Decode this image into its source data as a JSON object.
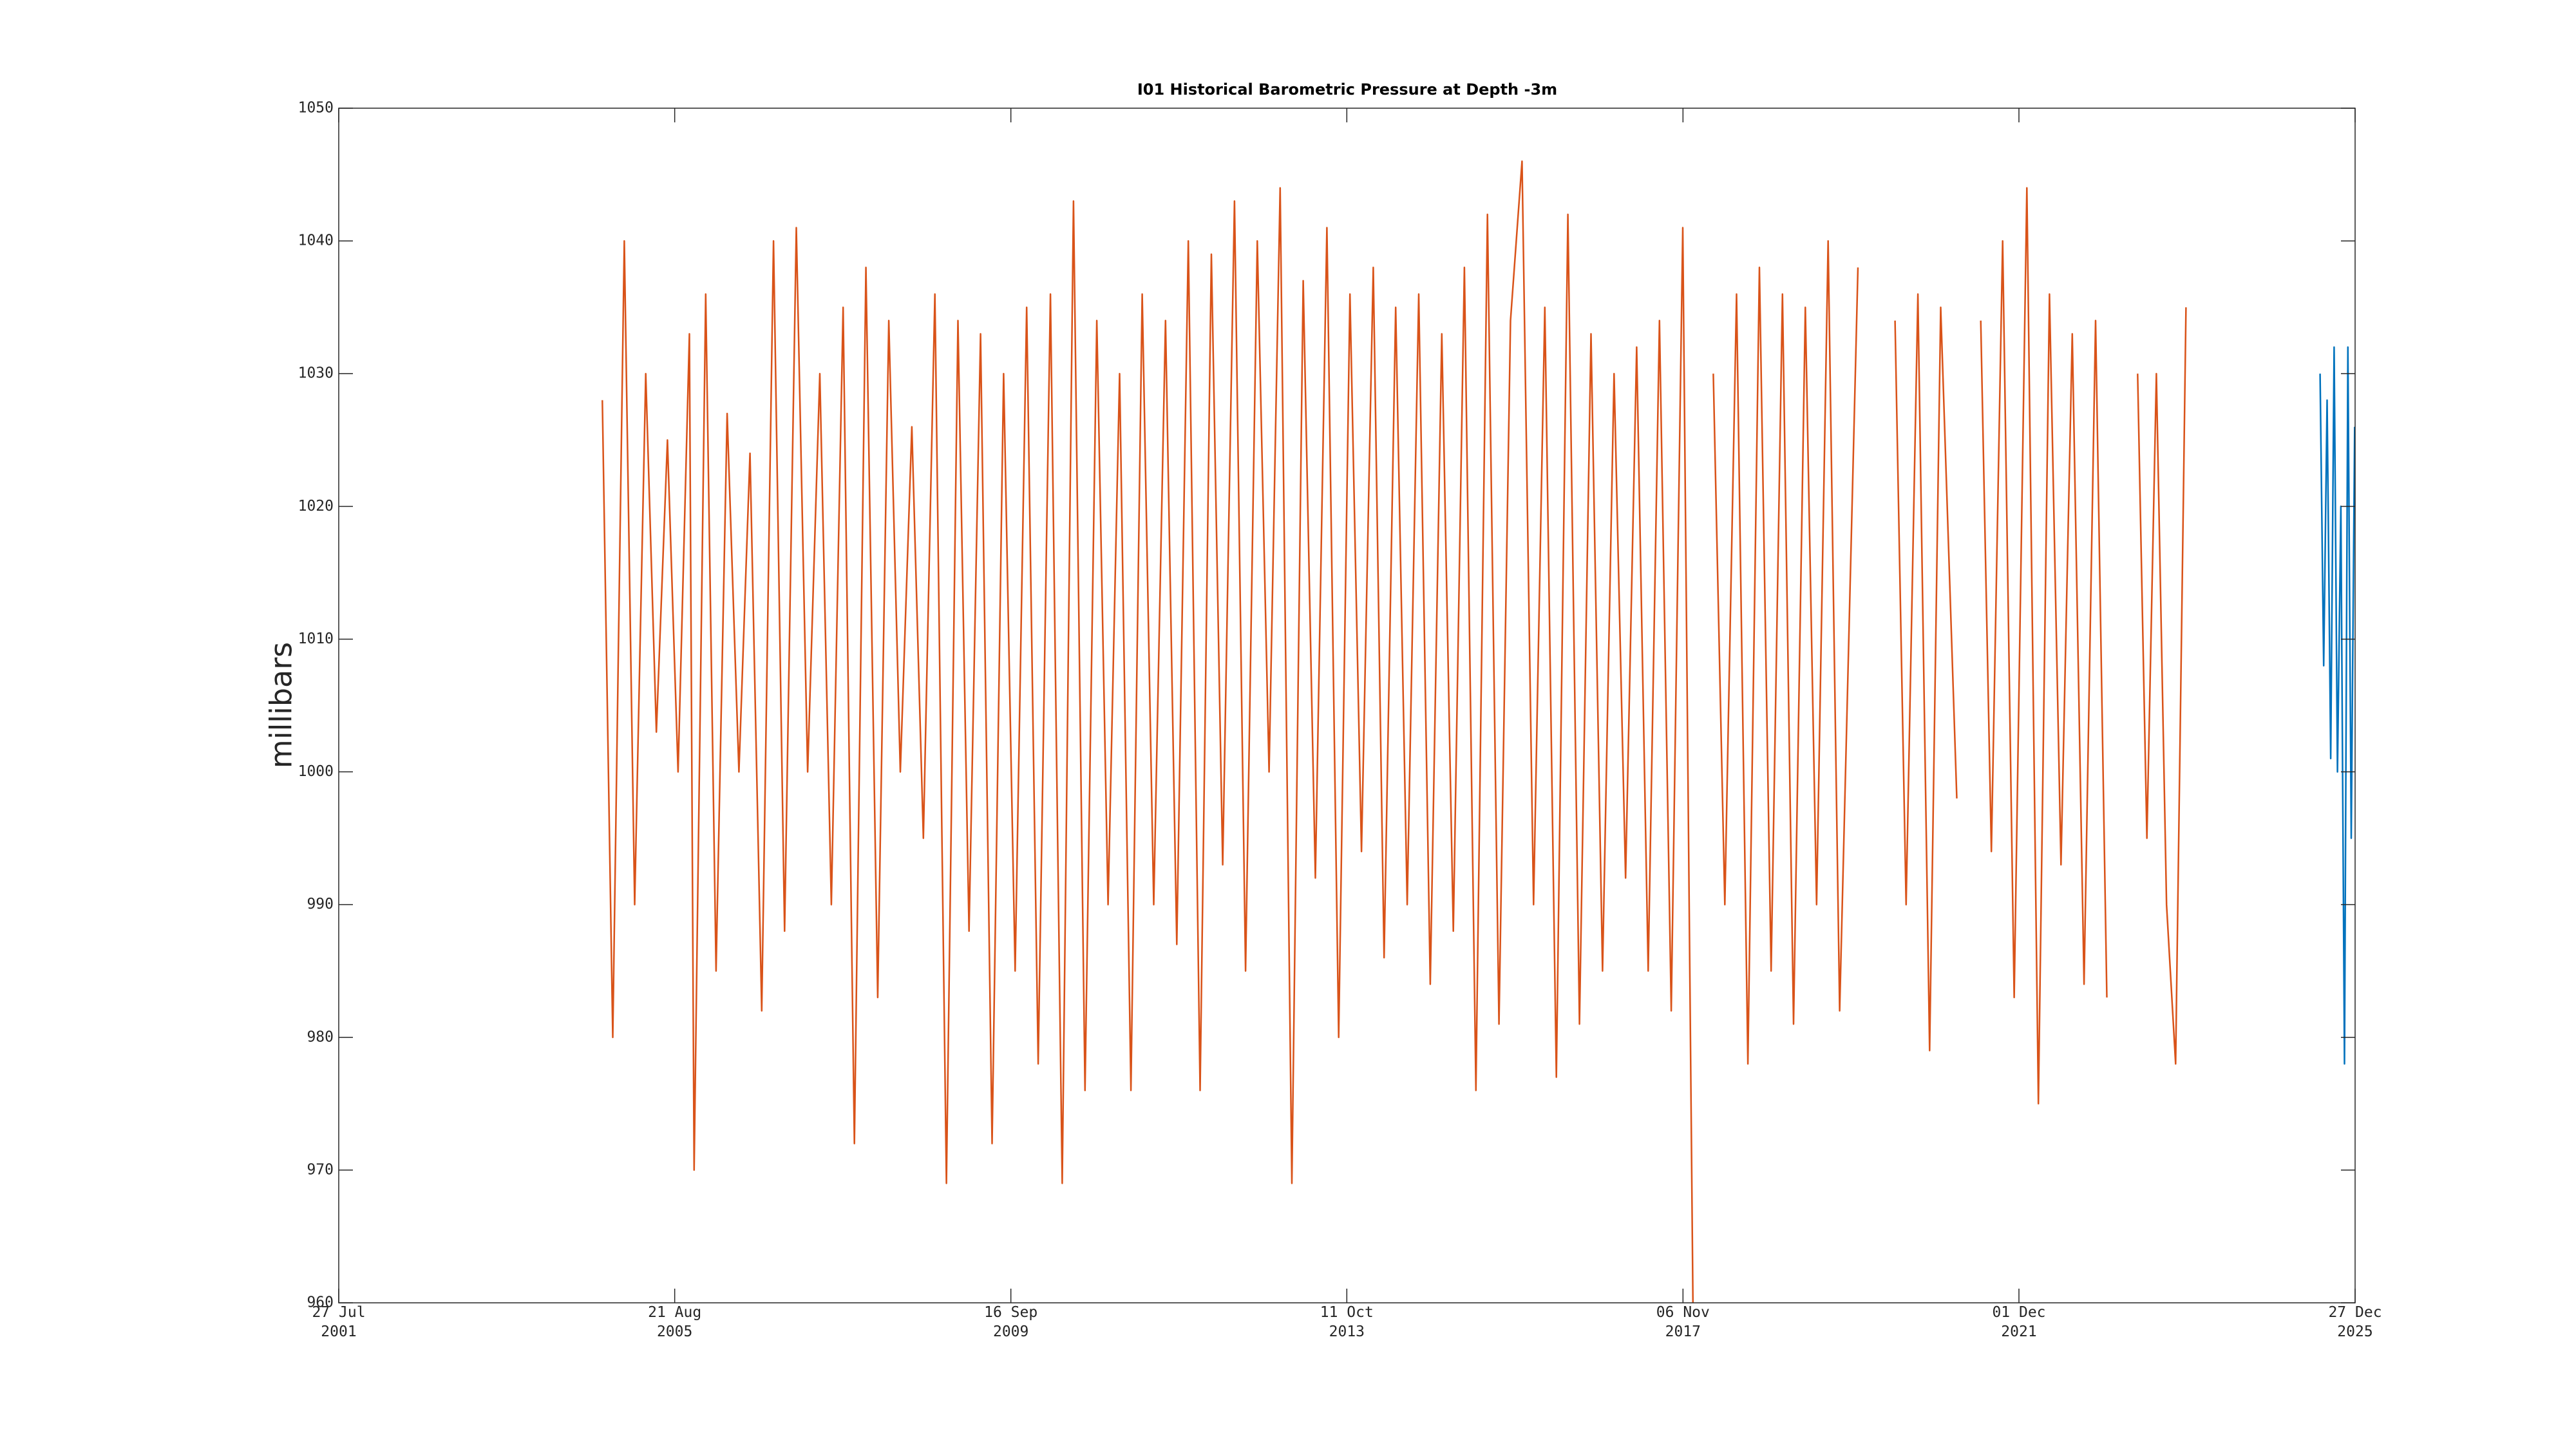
{
  "chart_data": {
    "type": "line",
    "title": "I01 Historical Barometric Pressure at Depth -3m",
    "ylabel": "millibars",
    "xlim": [
      "2001-07-27",
      "2025-12-27"
    ],
    "xticks": [
      {
        "value": "2001-07-27",
        "label": "27 Jul 2001"
      },
      {
        "value": "2005-08-21",
        "label": "21 Aug 2005"
      },
      {
        "value": "2009-09-16",
        "label": "16 Sep 2009"
      },
      {
        "value": "2013-10-11",
        "label": "11 Oct 2013"
      },
      {
        "value": "2017-11-06",
        "label": "06 Nov 2017"
      },
      {
        "value": "2021-12-01",
        "label": "01 Dec 2021"
      },
      {
        "value": "2025-12-27",
        "label": "27 Dec 2025"
      }
    ],
    "ylim": [
      960,
      1050
    ],
    "yticks": [
      960,
      970,
      980,
      990,
      1000,
      1010,
      1020,
      1030,
      1040,
      1050
    ],
    "grid": false,
    "series": [
      {
        "color": "#d95319",
        "x": [
          "2004-10-05",
          "2004-11-20",
          "2005-01-10",
          "2005-02-25",
          "2005-04-15",
          "2005-06-01",
          "2005-07-20",
          "2005-09-05",
          "2005-10-25",
          "2005-11-15",
          "2006-01-05",
          "2006-02-20",
          "2006-04-10",
          "2006-06-01",
          "2006-07-20",
          "2006-09-10",
          "2006-11-01",
          "2006-12-20",
          "2007-02-10",
          "2007-04-01",
          "2007-05-25",
          "2007-07-15",
          "2007-09-05",
          "2007-10-25",
          "2007-12-15",
          "2008-02-05",
          "2008-03-25",
          "2008-05-15",
          "2008-07-05",
          "2008-08-25",
          "2008-10-15",
          "2008-12-05",
          "2009-01-25",
          "2009-03-15",
          "2009-05-05",
          "2009-06-25",
          "2009-08-15",
          "2009-10-05",
          "2009-11-25",
          "2010-01-15",
          "2010-03-10",
          "2010-05-01",
          "2010-06-20",
          "2010-08-10",
          "2010-10-01",
          "2010-11-20",
          "2011-01-10",
          "2011-03-01",
          "2011-04-20",
          "2011-06-10",
          "2011-08-01",
          "2011-09-20",
          "2011-11-10",
          "2012-01-01",
          "2012-02-20",
          "2012-04-10",
          "2012-06-01",
          "2012-07-20",
          "2012-09-10",
          "2012-11-01",
          "2012-12-20",
          "2013-02-10",
          "2013-04-01",
          "2013-05-25",
          "2013-07-15",
          "2013-09-05",
          "2013-10-25",
          "2013-12-15",
          "2014-02-05",
          "2014-03-25",
          "2014-05-15",
          "2014-07-05",
          "2014-08-25",
          "2014-10-15",
          "2014-12-05",
          "2015-01-25",
          "2015-03-15",
          "2015-05-05",
          "2015-06-25",
          "2015-08-15",
          "2015-10-05",
          "2015-11-25",
          "2016-01-15",
          "2016-03-05",
          "2016-04-25",
          "2016-06-15",
          "2016-08-05",
          "2016-09-25",
          "2016-11-15",
          "2017-01-05",
          "2017-02-25",
          "2017-04-15",
          "2017-06-05",
          "2017-07-25",
          "2017-09-15",
          "2017-11-05",
          "2017-12-20",
          "2018-02-01",
          "2018-03-20",
          "2018-05-10",
          "2018-07-01",
          "2018-08-20",
          "2018-10-10",
          "2018-12-01",
          "2019-01-20",
          "2019-03-10",
          "2019-05-01",
          "2019-06-20",
          "2019-08-10",
          "2019-09-30",
          "2019-12-20",
          "2020-02-15",
          "2020-06-01",
          "2020-07-20",
          "2020-09-10",
          "2020-11-01",
          "2020-12-20",
          "2021-03-01",
          "2021-04-20",
          "2021-06-15",
          "2021-08-01",
          "2021-09-20",
          "2021-11-10",
          "2022-01-05",
          "2022-02-25",
          "2022-04-15",
          "2022-06-05",
          "2022-07-25",
          "2022-09-15",
          "2022-11-05",
          "2022-12-25",
          "2023-02-15",
          "2023-05-10",
          "2023-06-20",
          "2023-08-01",
          "2023-09-15",
          "2023-10-25",
          "2023-12-10"
        ],
        "values": [
          1028,
          980,
          1040,
          990,
          1030,
          1003,
          1025,
          1000,
          1033,
          970,
          1036,
          985,
          1027,
          1000,
          1024,
          982,
          1040,
          988,
          1041,
          1000,
          1030,
          990,
          1035,
          972,
          1038,
          983,
          1034,
          1000,
          1026,
          995,
          1036,
          969,
          1034,
          988,
          1033,
          972,
          1030,
          985,
          1035,
          978,
          1036,
          969,
          1043,
          976,
          1034,
          990,
          1030,
          976,
          1036,
          990,
          1034,
          987,
          1040,
          976,
          1039,
          993,
          1043,
          985,
          1040,
          1000,
          1044,
          969,
          1037,
          992,
          1041,
          980,
          1036,
          994,
          1038,
          986,
          1035,
          990,
          1036,
          984,
          1033,
          988,
          1038,
          976,
          1042,
          981,
          1034,
          1046,
          990,
          1035,
          977,
          1042,
          981,
          1033,
          985,
          1030,
          992,
          1032,
          985,
          1034,
          982,
          1041,
          960,
          null,
          1030,
          990,
          1036,
          978,
          1038,
          985,
          1036,
          981,
          1035,
          990,
          1040,
          982,
          1038,
          null,
          1034,
          990,
          1036,
          979,
          1035,
          998,
          null,
          1034,
          994,
          1040,
          983,
          1044,
          975,
          1036,
          993,
          1033,
          984,
          1034,
          983,
          null,
          1030,
          995,
          1030,
          990,
          978,
          1035
        ]
      },
      {
        "color": "#0072bd",
        "x": [
          "2025-07-25",
          "2025-08-10",
          "2025-08-25",
          "2025-09-10",
          "2025-09-25",
          "2025-10-10",
          "2025-10-25",
          "2025-11-10",
          "2025-11-25",
          "2025-12-10",
          "2025-12-25"
        ],
        "values": [
          1030,
          1008,
          1028,
          1001,
          1032,
          1000,
          1020,
          978,
          1032,
          995,
          1026
        ]
      }
    ]
  }
}
